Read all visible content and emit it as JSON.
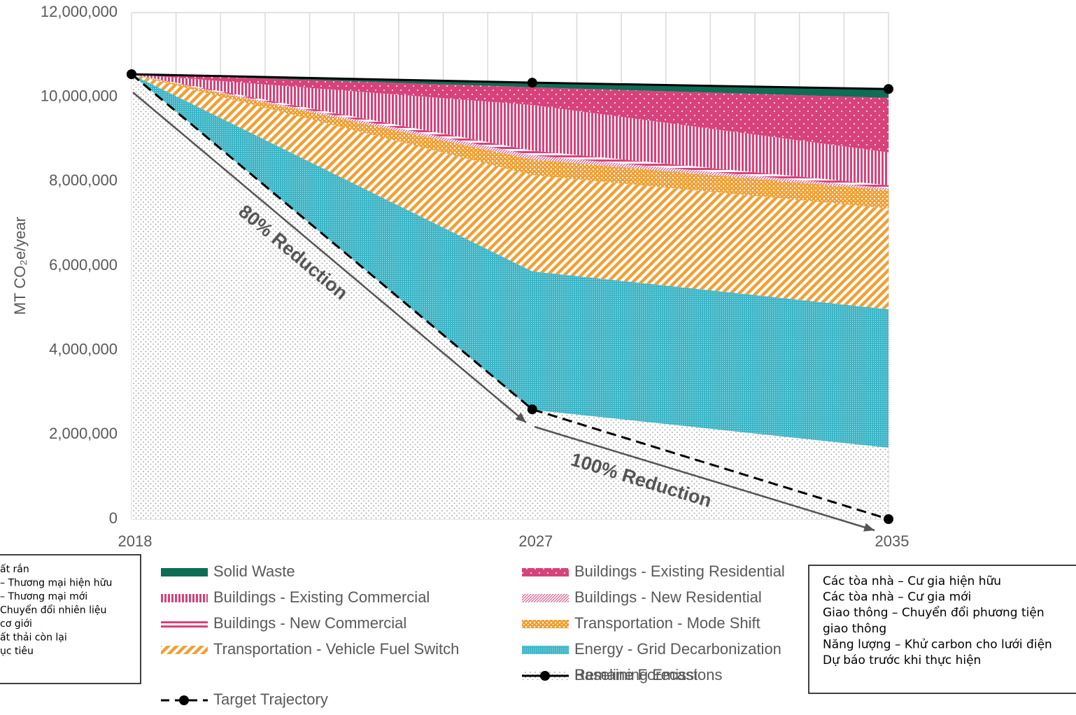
{
  "chart_data": {
    "type": "stacked_area",
    "y_label": "MT CO₂e/year",
    "x": [
      2018,
      2027,
      2035
    ],
    "xlim": [
      2018,
      2035
    ],
    "xticks": [
      2018,
      2027,
      2035
    ],
    "ylim": [
      0,
      12000000
    ],
    "yticks": [
      0,
      {
        "value": 2000000,
        "label": "2,000,000"
      },
      {
        "value": 4000000,
        "label": "4,000,000"
      },
      {
        "value": 6000000,
        "label": "6,000,000"
      },
      {
        "value": 8000000,
        "label": "8,000,000"
      },
      {
        "value": 10000000,
        "label": "10,000,000"
      },
      {
        "value": 12000000,
        "label": "12,000,000"
      }
    ],
    "grid": true,
    "series": [
      {
        "name": "Remaining Emissions",
        "color": "#9a9a9a",
        "pattern": "sparse-dots",
        "values": [
          10540000,
          2590000,
          1690000
        ]
      },
      {
        "name": "Energy - Grid Decarbonization",
        "color": "#3db5c6",
        "pattern": "fine-dots",
        "values": [
          0,
          3280000,
          3280000
        ]
      },
      {
        "name": "Transportation - Vehicle Fuel Switch",
        "color": "#f0a035",
        "pattern": "diagonal",
        "values": [
          0,
          2280000,
          2390000
        ]
      },
      {
        "name": "Transportation - Mode Shift",
        "color": "#f0a035",
        "pattern": "checker",
        "values": [
          0,
          370000,
          430000
        ]
      },
      {
        "name": "Buildings - New Residential",
        "color": "#d8427a",
        "pattern": "fine-diagonal",
        "values": [
          0,
          100000,
          50000
        ]
      },
      {
        "name": "Buildings - New Commercial",
        "color": "#d8427a",
        "pattern": "hstripes",
        "values": [
          0,
          110000,
          70000
        ]
      },
      {
        "name": "Buildings - Existing Commercial",
        "color": "#d8427a",
        "pattern": "vstripes",
        "values": [
          0,
          1080000,
          780000
        ]
      },
      {
        "name": "Buildings - Existing Residential",
        "color": "#d8427a",
        "pattern": "dots",
        "values": [
          0,
          420000,
          1290000
        ]
      },
      {
        "name": "Solid Waste",
        "color": "#0d6d55",
        "pattern": "solid",
        "values": [
          0,
          110000,
          210000
        ]
      }
    ],
    "lines": [
      {
        "name": "Baseline Forecast",
        "color": "#000000",
        "dash": false,
        "values": [
          10540000,
          10340000,
          10190000
        ]
      },
      {
        "name": "Target Trajectory",
        "color": "#000000",
        "dash": true,
        "values": [
          10540000,
          2600000,
          0
        ]
      }
    ],
    "annotations": [
      "80% Reduction",
      "100% Reduction"
    ],
    "note_left": [
      "ất rắn",
      "– Thương mại hiện hữu",
      "– Thương mại mới",
      "Chuyển đổi nhiên liệu",
      "cơ giới",
      "ất thải còn lại",
      "ục tiêu"
    ],
    "note_right": [
      "Các tòa nhà – Cư gia hiện hữu",
      "Các tòa nhà – Cư gia mới",
      "Giao thông – Chuyển đổi phương tiện",
      "giao thông",
      "Năng lượng – Khử carbon cho lưới điện",
      "Dự báo trước khi thực hiện"
    ]
  }
}
